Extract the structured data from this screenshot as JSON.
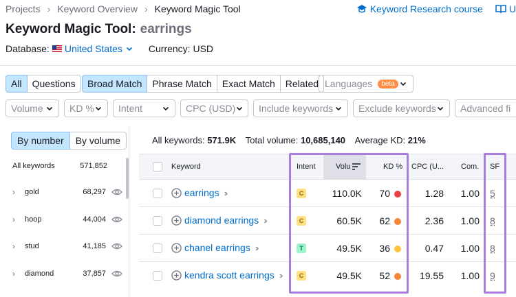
{
  "breadcrumb": [
    "Projects",
    "Keyword Overview",
    "Keyword Magic Tool"
  ],
  "top_links": {
    "course": "Keyword Research course",
    "user_manual": "U"
  },
  "title": {
    "tool": "Keyword Magic Tool:",
    "keyword": "earrings"
  },
  "database": {
    "label": "Database:",
    "value": "United States",
    "currency": "Currency: USD"
  },
  "match_tabs": {
    "all": "All",
    "questions": "Questions",
    "broad": "Broad Match",
    "phrase": "Phrase Match",
    "exact": "Exact Match",
    "related": "Related"
  },
  "languages": {
    "label": "Languages",
    "badge": "beta"
  },
  "filters": {
    "volume": "Volume",
    "kd": "KD %",
    "intent": "Intent",
    "cpc": "CPC (USD)",
    "include": "Include keywords",
    "exclude": "Exclude keywords",
    "advanced": "Advanced fi"
  },
  "group_toggle": {
    "by_number": "By number",
    "by_volume": "By volume"
  },
  "groups_header": {
    "label": "All keywords",
    "count": "571,852"
  },
  "groups": [
    {
      "name": "gold",
      "count": "68,297"
    },
    {
      "name": "hoop",
      "count": "44,004"
    },
    {
      "name": "stud",
      "count": "41,185"
    },
    {
      "name": "diamond",
      "count": "37,857"
    }
  ],
  "summary": {
    "all_label": "All keywords:",
    "all_value": "571.9K",
    "volume_label": "Total volume:",
    "volume_value": "10,685,140",
    "kd_label": "Average KD:",
    "kd_value": "21%"
  },
  "columns": {
    "keyword": "Keyword",
    "intent": "Intent",
    "volume": "Volu",
    "kd": "KD %",
    "cpc": "CPC (U...",
    "com": "Com.",
    "sf": "SF"
  },
  "rows": [
    {
      "keyword": "earrings",
      "intent": "C",
      "volume": "110.0K",
      "kd": "70",
      "kd_color": "#e94141",
      "cpc": "1.28",
      "com": "1.00",
      "sf": "5"
    },
    {
      "keyword": "diamond earrings",
      "intent": "C",
      "volume": "60.5K",
      "kd": "62",
      "kd_color": "#f48437",
      "cpc": "2.36",
      "com": "1.00",
      "sf": "8"
    },
    {
      "keyword": "chanel earrings",
      "intent": "T",
      "volume": "49.5K",
      "kd": "36",
      "kd_color": "#fcc33b",
      "cpc": "0.47",
      "com": "1.00",
      "sf": "8"
    },
    {
      "keyword": "kendra scott earrings",
      "intent": "C",
      "volume": "49.5K",
      "kd": "52",
      "kd_color": "#f48437",
      "cpc": "19.55",
      "com": "1.00",
      "sf": "9"
    }
  ],
  "colors": {
    "link": "#006dca",
    "highlight": "#a77ee0",
    "active_tab": "#c4e5fe"
  }
}
